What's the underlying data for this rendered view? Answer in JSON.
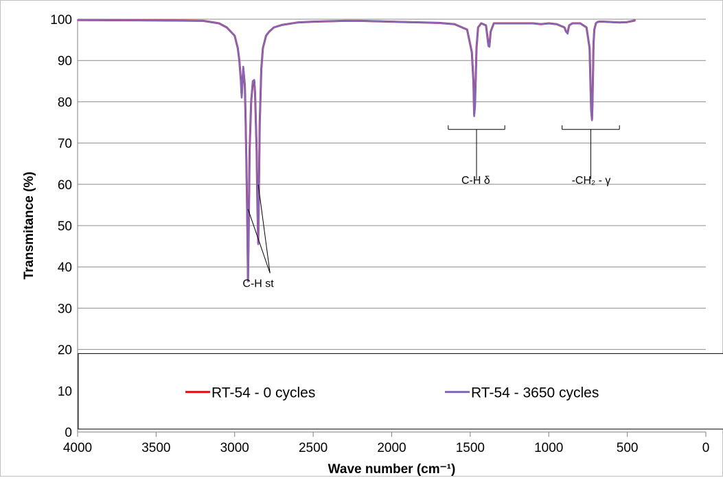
{
  "chart_data": {
    "type": "line",
    "title": "",
    "xlabel": "Wave number (cm⁻¹)",
    "ylabel": "Transmitance (%)",
    "xlim": [
      4000,
      0
    ],
    "ylim": [
      0,
      100
    ],
    "x_ticks": [
      "4000",
      "3500",
      "3000",
      "2500",
      "2000",
      "1500",
      "1000",
      "500",
      "0"
    ],
    "y_ticks": [
      "0",
      "10",
      "20",
      "30",
      "40",
      "50",
      "60",
      "70",
      "80",
      "90",
      "100"
    ],
    "grid": "horizontal",
    "legend_position": "bottom-inside",
    "colors": {
      "series_0": "#e0101a",
      "series_1": "#8566b4"
    },
    "series": [
      {
        "name": "RT-54 - 0 cycles",
        "x": [
          4000,
          3500,
          3200,
          3100,
          3050,
          3000,
          2980,
          2970,
          2960,
          2955,
          2945,
          2935,
          2930,
          2925,
          2920,
          2915,
          2910,
          2905,
          2895,
          2885,
          2875,
          2870,
          2860,
          2855,
          2850,
          2845,
          2840,
          2830,
          2820,
          2800,
          2780,
          2750,
          2700,
          2600,
          2500,
          2400,
          2300,
          2200,
          2100,
          2000,
          1900,
          1800,
          1700,
          1600,
          1520,
          1490,
          1480,
          1475,
          1470,
          1465,
          1460,
          1450,
          1430,
          1400,
          1385,
          1378,
          1370,
          1350,
          1300,
          1200,
          1100,
          1050,
          1000,
          950,
          900,
          890,
          880,
          870,
          850,
          800,
          760,
          740,
          735,
          730,
          725,
          722,
          718,
          715,
          710,
          700,
          690,
          680,
          650,
          600,
          550,
          500,
          450
        ],
        "y": [
          99.8,
          99.7,
          99.6,
          99.0,
          98.0,
          96.0,
          93.0,
          90.0,
          85.0,
          81.5,
          88.0,
          84.0,
          75.0,
          65.0,
          52.0,
          36.8,
          50.0,
          68.0,
          80.0,
          84.5,
          85.0,
          82.0,
          68.0,
          55.0,
          45.8,
          60.0,
          75.0,
          88.0,
          93.0,
          96.0,
          97.0,
          98.0,
          98.6,
          99.2,
          99.4,
          99.5,
          99.6,
          99.6,
          99.5,
          99.4,
          99.3,
          99.2,
          99.1,
          98.8,
          97.5,
          92.0,
          85.0,
          77.0,
          79.0,
          86.0,
          93.0,
          98.0,
          99.0,
          98.5,
          94.0,
          93.5,
          97.0,
          99.0,
          99.0,
          99.0,
          99.0,
          98.8,
          99.0,
          98.8,
          98.0,
          97.0,
          96.8,
          98.5,
          99.0,
          99.0,
          98.0,
          93.0,
          85.0,
          78.0,
          75.8,
          79.0,
          88.0,
          94.0,
          97.5,
          99.0,
          99.3,
          99.4,
          99.4,
          99.3,
          99.2,
          99.3,
          99.7
        ]
      },
      {
        "name": "RT-54 - 3650 cycles",
        "x": [
          4000,
          3500,
          3200,
          3100,
          3050,
          3000,
          2980,
          2970,
          2960,
          2955,
          2945,
          2935,
          2930,
          2925,
          2920,
          2915,
          2910,
          2905,
          2895,
          2885,
          2875,
          2870,
          2860,
          2855,
          2850,
          2845,
          2840,
          2830,
          2820,
          2800,
          2780,
          2750,
          2700,
          2600,
          2500,
          2400,
          2300,
          2200,
          2100,
          2000,
          1900,
          1800,
          1700,
          1600,
          1520,
          1490,
          1480,
          1475,
          1470,
          1465,
          1460,
          1450,
          1430,
          1400,
          1385,
          1378,
          1370,
          1350,
          1300,
          1200,
          1100,
          1050,
          1000,
          950,
          900,
          890,
          880,
          870,
          850,
          800,
          760,
          740,
          735,
          730,
          725,
          722,
          718,
          715,
          710,
          700,
          690,
          680,
          650,
          600,
          550,
          500,
          450
        ],
        "y": [
          99.8,
          99.7,
          99.6,
          99.0,
          98.0,
          96.0,
          93.0,
          90.0,
          85.0,
          81.0,
          88.5,
          84.0,
          75.0,
          65.0,
          52.0,
          36.5,
          50.0,
          68.0,
          80.0,
          85.0,
          85.3,
          82.0,
          68.0,
          55.0,
          45.5,
          60.0,
          75.0,
          88.0,
          93.0,
          96.0,
          97.0,
          98.0,
          98.6,
          99.2,
          99.4,
          99.5,
          99.6,
          99.6,
          99.5,
          99.4,
          99.3,
          99.2,
          99.1,
          98.8,
          97.5,
          92.0,
          85.0,
          76.5,
          79.0,
          86.0,
          93.0,
          98.0,
          99.0,
          98.5,
          93.5,
          93.3,
          97.0,
          99.0,
          99.0,
          99.0,
          99.0,
          98.8,
          99.0,
          98.8,
          98.0,
          97.0,
          96.5,
          98.5,
          99.0,
          99.0,
          98.0,
          93.0,
          85.0,
          78.0,
          75.5,
          79.0,
          88.0,
          94.0,
          97.5,
          99.0,
          99.3,
          99.4,
          99.4,
          99.3,
          99.2,
          99.3,
          99.8
        ]
      }
    ],
    "annotations": [
      {
        "label": "C-H st",
        "x": 2850,
        "y": 36,
        "pointer_targets": [
          [
            2915,
            54
          ],
          [
            2850,
            60
          ]
        ],
        "range": null,
        "stem": null
      },
      {
        "label": "C-H δ",
        "x": 1465,
        "y": 61,
        "pointer_targets": [],
        "range": [
          1640,
          1280
        ],
        "stem": [
          73.3,
          61.3
        ]
      },
      {
        "label": "-CH₂ - γ",
        "x": 730,
        "y": 61,
        "pointer_targets": [],
        "range": [
          915,
          550
        ],
        "stem": [
          73.3,
          61.3
        ]
      }
    ]
  }
}
